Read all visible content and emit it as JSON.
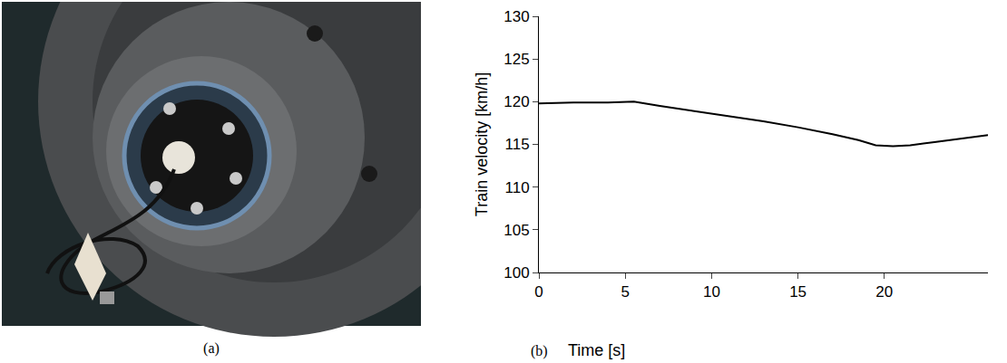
{
  "photo_panel": {
    "label": "(a)"
  },
  "chart_data": {
    "type": "line",
    "panel_label": "(b)",
    "x_label": "Time [s]",
    "y_label": "Train velocity [km/h]",
    "x": [
      0,
      2,
      4,
      5.5,
      7,
      9,
      11,
      13,
      15,
      17,
      18.5,
      19.5,
      20.5,
      21.5,
      23,
      24.5,
      26
    ],
    "values": [
      119.8,
      119.9,
      119.9,
      120.0,
      119.5,
      118.9,
      118.3,
      117.7,
      117.0,
      116.2,
      115.5,
      114.9,
      114.8,
      114.9,
      115.3,
      115.7,
      116.1
    ],
    "color": "#000000",
    "xlim": [
      0,
      26
    ],
    "xticks": [
      0,
      5,
      10,
      15,
      20
    ],
    "ylim": [
      100,
      130
    ],
    "yticks": [
      100,
      105,
      110,
      115,
      120,
      125,
      130
    ],
    "grid": false
  }
}
